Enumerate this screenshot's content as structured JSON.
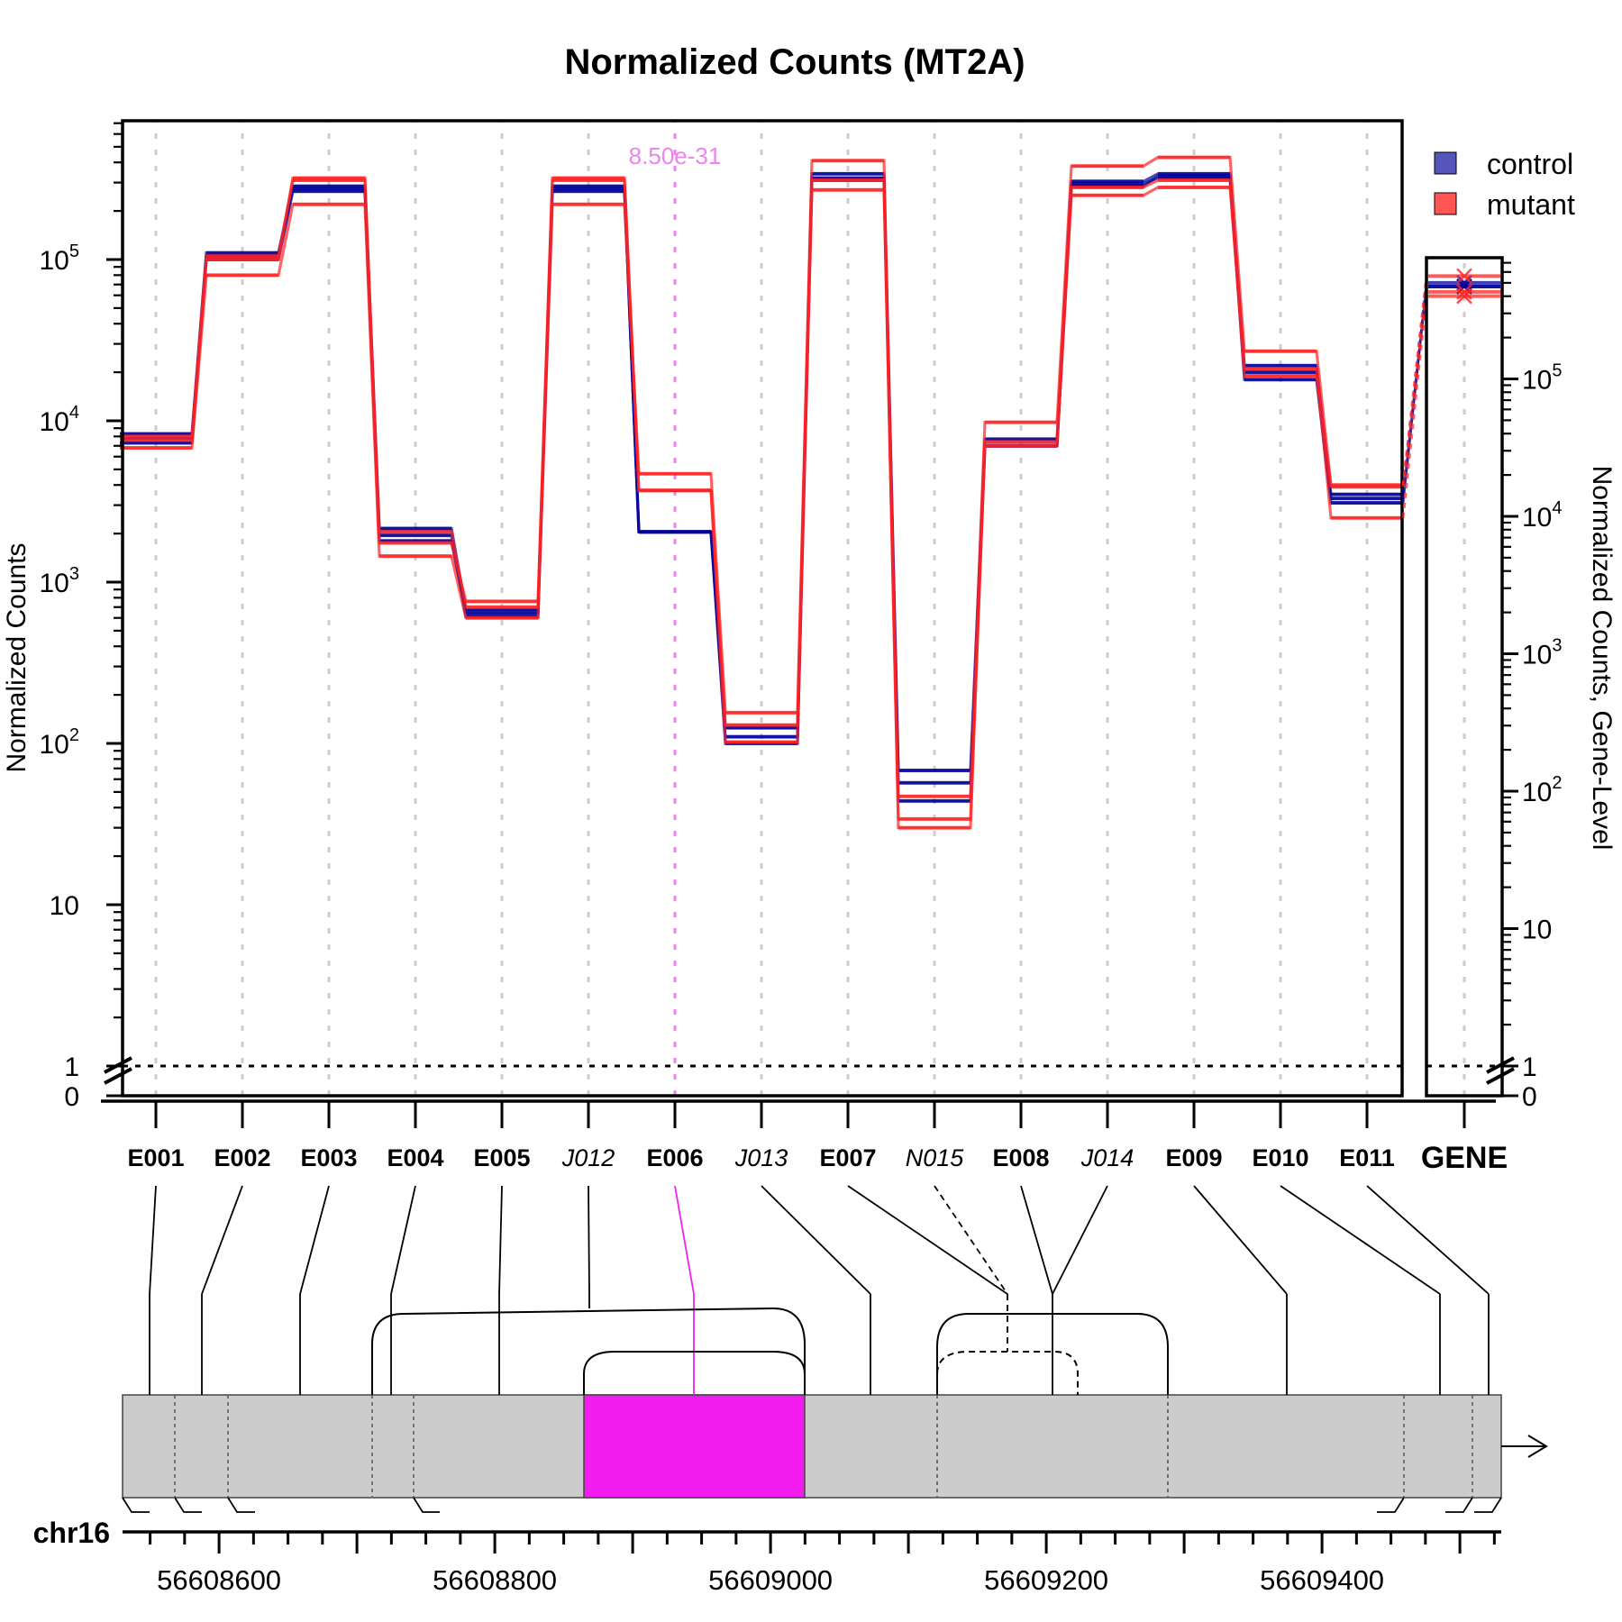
{
  "chart_data": {
    "type": "line",
    "title": "Normalized Counts (MT2A)",
    "ylabel": "Normalized Counts",
    "ylabel_right": "Normalized Counts, Gene-Level",
    "y_scale": "log",
    "y_ticks": [
      {
        "value": 0,
        "base": "0",
        "exp": ""
      },
      {
        "value": 1,
        "base": "1",
        "exp": ""
      },
      {
        "value": 10,
        "base": "10",
        "exp": ""
      },
      {
        "value": 100,
        "base": "10",
        "exp": "2"
      },
      {
        "value": 1000,
        "base": "10",
        "exp": "3"
      },
      {
        "value": 10000,
        "base": "10",
        "exp": "4"
      },
      {
        "value": 100000,
        "base": "10",
        "exp": "5"
      }
    ],
    "features": [
      {
        "id": "E001",
        "kind": "exon"
      },
      {
        "id": "E002",
        "kind": "exon"
      },
      {
        "id": "E003",
        "kind": "exon"
      },
      {
        "id": "E004",
        "kind": "exon"
      },
      {
        "id": "E005",
        "kind": "exon"
      },
      {
        "id": "J012",
        "kind": "junction"
      },
      {
        "id": "E006",
        "kind": "exon"
      },
      {
        "id": "J013",
        "kind": "junction"
      },
      {
        "id": "E007",
        "kind": "exon"
      },
      {
        "id": "N015",
        "kind": "novel"
      },
      {
        "id": "E008",
        "kind": "exon"
      },
      {
        "id": "J014",
        "kind": "junction"
      },
      {
        "id": "E009",
        "kind": "exon"
      },
      {
        "id": "E010",
        "kind": "exon"
      },
      {
        "id": "E011",
        "kind": "exon"
      }
    ],
    "gene_label": "GENE",
    "highlight": {
      "feature": "E006",
      "pvalue": "8.50e-31",
      "color": "#ee82ee"
    },
    "series": [
      {
        "name": "control",
        "color": "#000099",
        "replicates": [
          [
            8300,
            110000,
            285000,
            2150,
            670,
            285000,
            2050,
            100,
            340000,
            68,
            7700,
            305000,
            340000,
            20000,
            3300
          ],
          [
            7800,
            105000,
            275000,
            1950,
            610,
            275000,
            2050,
            125,
            320000,
            57,
            7000,
            295000,
            320000,
            22000,
            3500
          ],
          [
            7300,
            100000,
            265000,
            1800,
            640,
            265000,
            2050,
            110,
            310000,
            44,
            7000,
            285000,
            330000,
            18000,
            3100
          ]
        ]
      },
      {
        "name": "mutant",
        "color": "#ff2222",
        "replicates": [
          [
            6800,
            80000,
            220000,
            1450,
            600,
            220000,
            4700,
            155,
            410000,
            47,
            9800,
            380000,
            430000,
            27000,
            4000
          ],
          [
            7600,
            100000,
            320000,
            1750,
            760,
            320000,
            3700,
            102,
            270000,
            34,
            7000,
            250000,
            280000,
            21000,
            2500
          ],
          [
            8000,
            105000,
            310000,
            2050,
            700,
            310000,
            3700,
            130,
            310000,
            30,
            7400,
            280000,
            310000,
            19000,
            3900
          ]
        ]
      }
    ],
    "gene_level": {
      "control": [
        470000,
        470000,
        500000
      ],
      "mutant": [
        560000,
        400000,
        430000
      ]
    },
    "legend": {
      "placement": "top-right",
      "entries": [
        "control",
        "mutant"
      ]
    },
    "genome": {
      "chrom": "chr16",
      "tick_labels": [
        56608600,
        56608800,
        56609000,
        56609200,
        56609400
      ],
      "region_start": 56608530,
      "region_end": 56609530
    }
  }
}
